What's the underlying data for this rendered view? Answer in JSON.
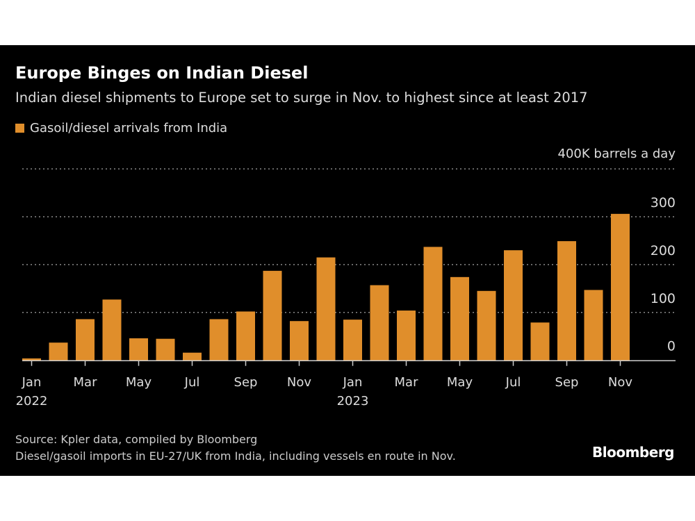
{
  "chart_data": {
    "type": "bar",
    "title": "Europe Binges on Indian Diesel",
    "subtitle": "Indian diesel shipments to Europe set to surge in Nov. to highest since at least 2017",
    "series": [
      {
        "name": "Gasoil/diesel arrivals from India",
        "color": "#e08e2b",
        "values": [
          4,
          37,
          86,
          127,
          46,
          45,
          16,
          86,
          102,
          187,
          82,
          215,
          85,
          157,
          104,
          237,
          174,
          145,
          230,
          79,
          249,
          147,
          306
        ]
      }
    ],
    "categories": [
      "Jan 2022",
      "Feb 2022",
      "Mar 2022",
      "Apr 2022",
      "May 2022",
      "Jun 2022",
      "Jul 2022",
      "Aug 2022",
      "Sep 2022",
      "Oct 2022",
      "Nov 2022",
      "Dec 2022",
      "Jan 2023",
      "Feb 2023",
      "Mar 2023",
      "Apr 2023",
      "May 2023",
      "Jun 2023",
      "Jul 2023",
      "Aug 2023",
      "Sep 2023",
      "Oct 2023",
      "Nov 2023"
    ],
    "x_tick_labels": [
      {
        "index": 0,
        "label": "Jan",
        "year": "2022"
      },
      {
        "index": 2,
        "label": "Mar"
      },
      {
        "index": 4,
        "label": "May"
      },
      {
        "index": 6,
        "label": "Jul"
      },
      {
        "index": 8,
        "label": "Sep"
      },
      {
        "index": 10,
        "label": "Nov"
      },
      {
        "index": 12,
        "label": "Jan",
        "year": "2023"
      },
      {
        "index": 14,
        "label": "Mar"
      },
      {
        "index": 16,
        "label": "May"
      },
      {
        "index": 18,
        "label": "Jul"
      },
      {
        "index": 20,
        "label": "Sep"
      },
      {
        "index": 22,
        "label": "Nov"
      }
    ],
    "y_ticks": [
      0,
      100,
      200,
      300,
      400
    ],
    "y_tick_labels": [
      "0",
      "100",
      "200",
      "300",
      "400K barrels a day"
    ],
    "ylim": [
      0,
      400
    ],
    "grid": true,
    "legend_position": "top-left",
    "axis_side": "right"
  },
  "footer": {
    "source": "Source: Kpler data, compiled by Bloomberg",
    "note": "Diesel/gasoil imports in EU-27/UK from India, including vessels en route in Nov.",
    "logo": "Bloomberg"
  },
  "colors": {
    "background": "#000000",
    "bar": "#e08e2b",
    "grid": "#8a8a8a"
  }
}
